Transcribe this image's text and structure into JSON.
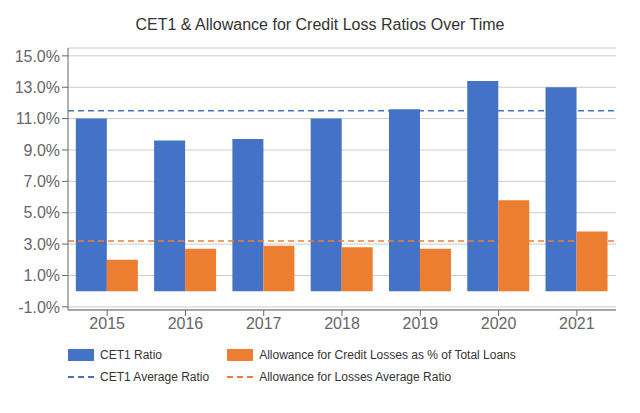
{
  "chart_data": {
    "type": "bar",
    "title": "CET1 & Allowance for Credit Loss Ratios Over Time",
    "categories": [
      "2015",
      "2016",
      "2017",
      "2018",
      "2019",
      "2020",
      "2021"
    ],
    "series": [
      {
        "name": "CET1 Ratio",
        "color": "#4472C4",
        "values": [
          0.11,
          0.096,
          0.097,
          0.11,
          0.116,
          0.134,
          0.13
        ]
      },
      {
        "name": "Allowance for Credit Losses as % of Total Loans",
        "color": "#ED7D31",
        "values": [
          0.02,
          0.027,
          0.029,
          0.028,
          0.027,
          0.058,
          0.038
        ]
      }
    ],
    "reference_lines": [
      {
        "name": "CET1 Average Ratio",
        "value": 0.115,
        "color": "#4472C4",
        "line_style": "dashed"
      },
      {
        "name": "Allowance for Losses Average Ratio",
        "value": 0.032,
        "color": "#ED7D31",
        "line_style": "dashed"
      }
    ],
    "ylim": [
      -0.012,
      0.155
    ],
    "yticks": [
      {
        "value": -0.01,
        "label": "-1.0%"
      },
      {
        "value": 0.01,
        "label": "1.0%"
      },
      {
        "value": 0.03,
        "label": "3.0%"
      },
      {
        "value": 0.05,
        "label": "5.0%"
      },
      {
        "value": 0.07,
        "label": "7.0%"
      },
      {
        "value": 0.09,
        "label": "9.0%"
      },
      {
        "value": 0.11,
        "label": "11.0%"
      },
      {
        "value": 0.13,
        "label": "13.0%"
      },
      {
        "value": 0.15,
        "label": "15.0%"
      }
    ],
    "grid": true,
    "legend": "bottom"
  }
}
